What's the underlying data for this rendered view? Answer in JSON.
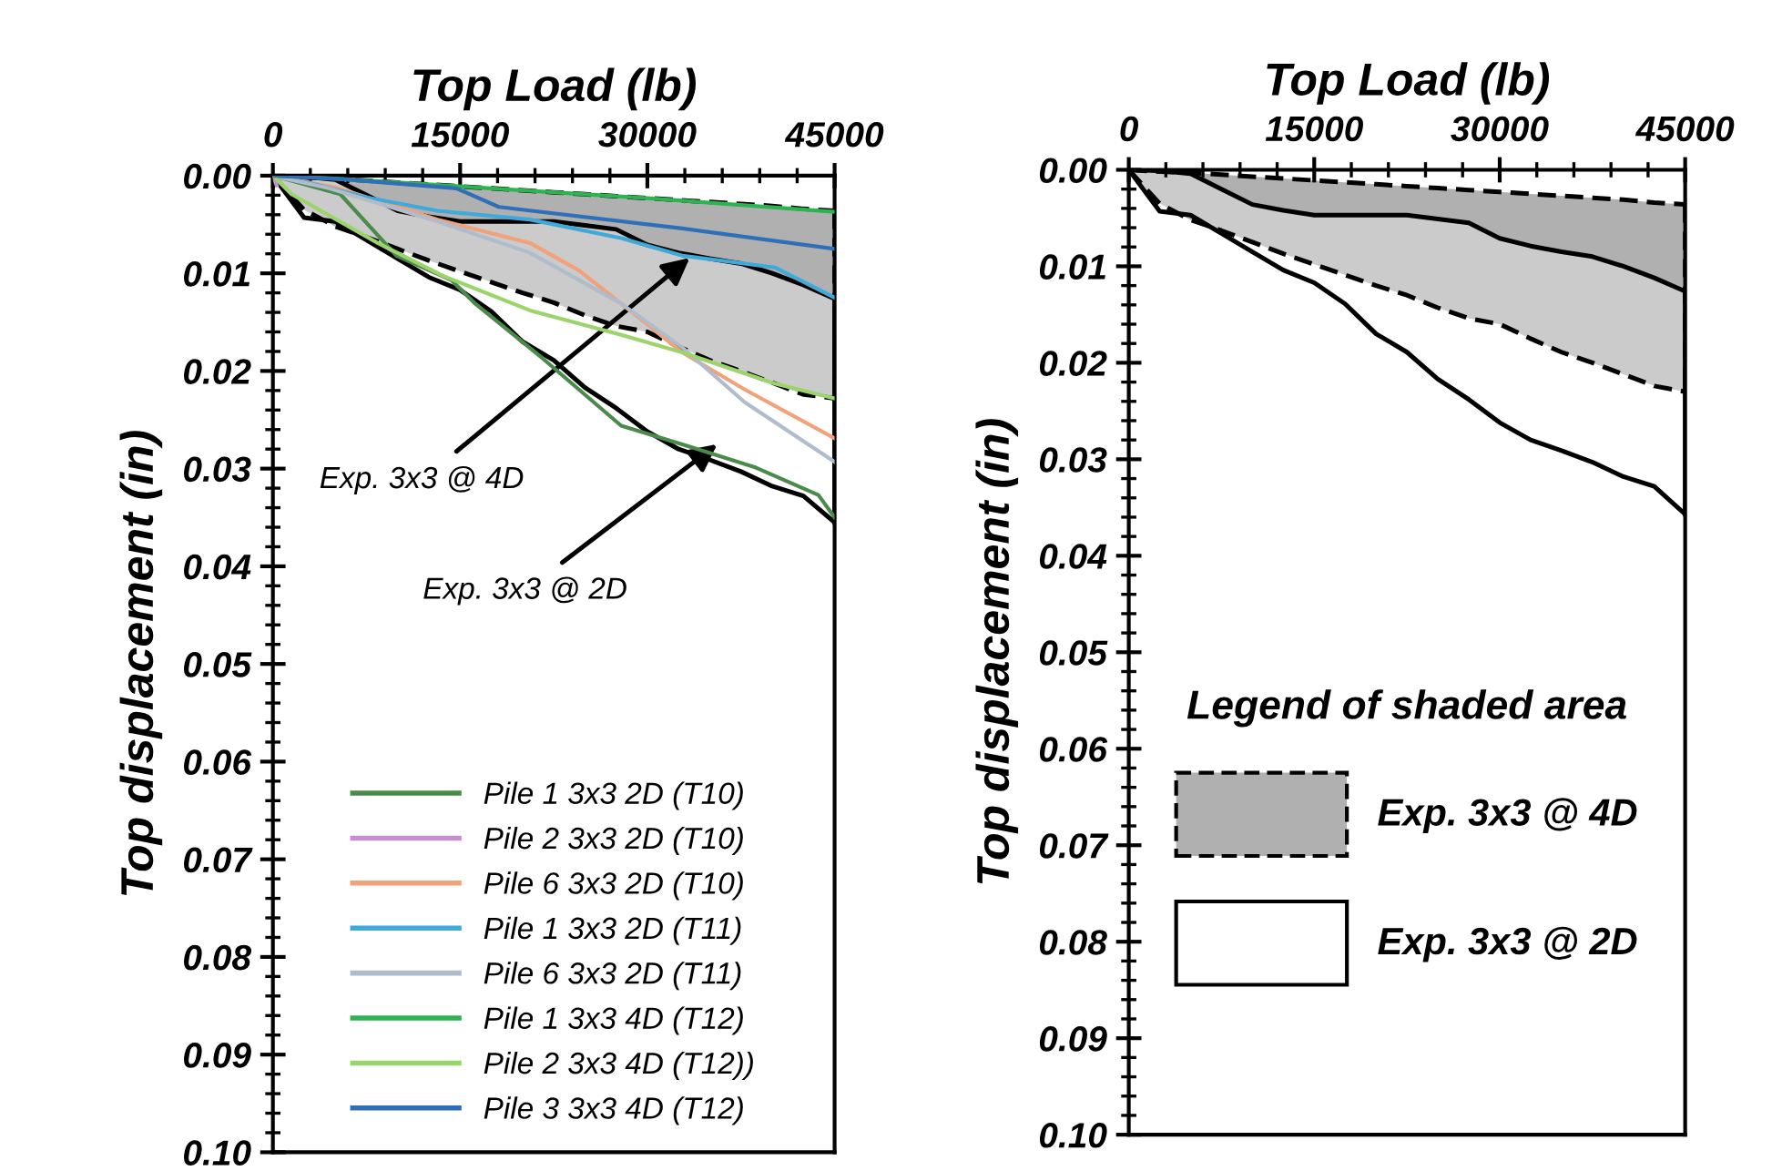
{
  "chart_data": [
    {
      "type": "line",
      "xlabel": "Top Load (lb)",
      "ylabel": "Top displacement (in)",
      "xlim": [
        0,
        45000
      ],
      "xticks": [
        0,
        15000,
        30000,
        45000
      ],
      "ylim": [
        0.1,
        0.0
      ],
      "yticks": [
        {
          "value": 0,
          "label": "0.00"
        },
        {
          "value": 0.01,
          "label": "0.01"
        },
        {
          "value": 0.02,
          "label": "0.02"
        },
        {
          "value": 0.03,
          "label": "0.03"
        },
        {
          "value": 0.04,
          "label": "0.04"
        },
        {
          "value": 0.05,
          "label": "0.05"
        },
        {
          "value": 0.06,
          "label": "0.06"
        },
        {
          "value": 0.07,
          "label": "0.07"
        },
        {
          "value": 0.08,
          "label": "0.08"
        },
        {
          "value": 0.09,
          "label": "0.09"
        },
        {
          "value": 0.1,
          "label": "0.10"
        }
      ],
      "grid": false,
      "legend": "bottom",
      "series": [
        {
          "color": "#000000",
          "line_style": "dashed",
          "x": [
            0,
            2500,
            5000,
            7500,
            10000,
            12500,
            15000,
            17500,
            20000,
            22500,
            25000,
            27500,
            30000,
            32500,
            35000,
            37500,
            40000,
            42500,
            45000
          ],
          "values": [
            0,
            0.0002,
            0.0003,
            0.0005,
            0.0007,
            0.0009,
            0.0011,
            0.0013,
            0.0015,
            0.0017,
            0.0019,
            0.0021,
            0.0023,
            0.0025,
            0.0027,
            0.0029,
            0.0031,
            0.0034,
            0.0036
          ]
        },
        {
          "color": "#000000",
          "line_style": "solid",
          "x": [
            0,
            2500,
            5000,
            7500,
            10000,
            12500,
            15000,
            17500,
            20000,
            22500,
            25000,
            27500,
            30000,
            32500,
            35000,
            37500,
            40000,
            42500,
            45000
          ],
          "values": [
            0,
            0.0001,
            0.0004,
            0.002,
            0.0036,
            0.0042,
            0.0047,
            0.0047,
            0.0047,
            0.0047,
            0.0051,
            0.0055,
            0.0071,
            0.0079,
            0.0085,
            0.009,
            0.01,
            0.0112,
            0.0126
          ]
        },
        {
          "color": "#000000",
          "line_style": "dashed",
          "x": [
            0,
            2500,
            5000,
            7500,
            10000,
            12500,
            15000,
            17500,
            20000,
            22500,
            25000,
            27500,
            30000,
            32500,
            35000,
            37500,
            40000,
            42500,
            45000
          ],
          "values": [
            0,
            0.0035,
            0.0052,
            0.0063,
            0.0075,
            0.0087,
            0.0098,
            0.0109,
            0.012,
            0.013,
            0.0143,
            0.0154,
            0.016,
            0.0175,
            0.0189,
            0.02,
            0.0212,
            0.0224,
            0.0228
          ],
          "lower": [
            0,
            0.0002,
            0.0003,
            0.0005,
            0.0007,
            0.0009,
            0.0011,
            0.0013,
            0.0015,
            0.0017,
            0.0019,
            0.0021,
            0.0023,
            0.0025,
            0.0027,
            0.0029,
            0.0031,
            0.0034,
            0.0036
          ],
          "upper": [
            0,
            0.0035,
            0.0052,
            0.0063,
            0.0075,
            0.0087,
            0.0098,
            0.0109,
            0.012,
            0.013,
            0.0143,
            0.0154,
            0.016,
            0.0175,
            0.0189,
            0.02,
            0.0212,
            0.0224,
            0.0228
          ]
        },
        {
          "color": "#000000",
          "line_style": "solid",
          "x": [
            0,
            2500,
            5000,
            7500,
            10000,
            12500,
            15000,
            17500,
            20000,
            22500,
            25000,
            27500,
            30000,
            32500,
            35000,
            37500,
            40000,
            42500,
            45000
          ],
          "values": [
            0,
            0.0043,
            0.0047,
            0.0066,
            0.0085,
            0.0104,
            0.0117,
            0.0139,
            0.017,
            0.0189,
            0.0217,
            0.0238,
            0.0262,
            0.028,
            0.0291,
            0.0303,
            0.0318,
            0.0328,
            0.0355
          ],
          "lower": [
            0,
            0.0001,
            0.0004,
            0.002,
            0.0036,
            0.0042,
            0.0047,
            0.0047,
            0.0047,
            0.0047,
            0.0051,
            0.0055,
            0.0071,
            0.0079,
            0.0085,
            0.009,
            0.01,
            0.0112,
            0.0126
          ],
          "upper": [
            0,
            0.0043,
            0.0047,
            0.0066,
            0.0085,
            0.0104,
            0.0117,
            0.0139,
            0.017,
            0.0189,
            0.0217,
            0.0238,
            0.0262,
            0.028,
            0.0291,
            0.0303,
            0.0318,
            0.0328,
            0.0355
          ]
        },
        {
          "name": "Pile 1 3x3 2D (T10)",
          "color": "#4a8a4a",
          "x": [
            0,
            5400,
            9900,
            14300,
            16200,
            21600,
            27900,
            33800,
            38700,
            43700,
            45000
          ],
          "values": [
            0,
            0.0019,
            0.0082,
            0.0107,
            0.0131,
            0.0187,
            0.0256,
            0.0279,
            0.0299,
            0.0327,
            0.035
          ]
        },
        {
          "name": "Pile 2 3x3 2D (T10)",
          "color": "#c78fd0",
          "x": [
            0,
            300
          ],
          "values": [
            0,
            0.001
          ]
        },
        {
          "name": "Pile 6 3x3 2D (T10)",
          "color": "#f0a27a",
          "x": [
            0,
            5000,
            13200,
            20600,
            24500,
            27900,
            32800,
            37800,
            45000
          ],
          "values": [
            0,
            0.0012,
            0.0045,
            0.0069,
            0.0097,
            0.0131,
            0.0181,
            0.0219,
            0.0269
          ]
        },
        {
          "name": "Pile 1 3x3 2D (T11)",
          "color": "#3fa9d9",
          "x": [
            0,
            3400,
            7400,
            13200,
            20600,
            27900,
            32800,
            40200,
            45000
          ],
          "values": [
            0,
            0.0009,
            0.0022,
            0.0036,
            0.0045,
            0.0064,
            0.0082,
            0.0094,
            0.0125
          ]
        },
        {
          "name": "Pile 6 3x3 2D (T11)",
          "color": "#b0bccc",
          "x": [
            0,
            4500,
            13200,
            20600,
            27900,
            32800,
            37800,
            45000
          ],
          "values": [
            0,
            0.0013,
            0.0047,
            0.0079,
            0.0131,
            0.0176,
            0.0232,
            0.0293
          ]
        },
        {
          "name": "Pile 1 3x3 4D (T12)",
          "color": "#2db350",
          "x": [
            0,
            5000,
            15000,
            30000,
            45000
          ],
          "values": [
            0,
            0.0003,
            0.0011,
            0.0023,
            0.0037
          ]
        },
        {
          "name": "Pile 2 3x3 4D (T12))",
          "color": "#9ad46a",
          "x": [
            0,
            1500,
            8400,
            13700,
            20600,
            27900,
            32800,
            40200,
            45000
          ],
          "values": [
            0,
            0.0019,
            0.0069,
            0.0103,
            0.0138,
            0.0163,
            0.0181,
            0.0213,
            0.0228
          ]
        },
        {
          "name": "Pile 3 3x3 4D (T12)",
          "color": "#2f6fb8",
          "x": [
            0,
            5900,
            14700,
            18100,
            32800,
            45000
          ],
          "values": [
            0,
            0.0004,
            0.0013,
            0.0032,
            0.0054,
            0.0075
          ]
        }
      ],
      "annotations": [
        {
          "text": "Exp. 3x3 @ 4D",
          "x": 33400,
          "y": 0.0084
        },
        {
          "text": "Exp. 3x3 @ 2D",
          "x": 35600,
          "y": 0.0275
        }
      ]
    },
    {
      "type": "line",
      "xlabel": "Top Load (lb)",
      "ylabel": "Top displacement (in)",
      "xlim": [
        0,
        45000
      ],
      "xticks": [
        0,
        15000,
        30000,
        45000
      ],
      "ylim": [
        0.1,
        0.0
      ],
      "yticks": [
        {
          "value": 0,
          "label": "0.00"
        },
        {
          "value": 0.01,
          "label": "0.01"
        },
        {
          "value": 0.02,
          "label": "0.02"
        },
        {
          "value": 0.03,
          "label": "0.03"
        },
        {
          "value": 0.04,
          "label": "0.04"
        },
        {
          "value": 0.05,
          "label": "0.05"
        },
        {
          "value": 0.06,
          "label": "0.06"
        },
        {
          "value": 0.07,
          "label": "0.07"
        },
        {
          "value": 0.08,
          "label": "0.08"
        },
        {
          "value": 0.09,
          "label": "0.09"
        },
        {
          "value": 0.1,
          "label": "0.10"
        }
      ],
      "grid": false,
      "legend": "bottom",
      "legend_title": "Legend of shaded area",
      "series": [
        {
          "color": "#000000",
          "line_style": "dashed",
          "x": [
            0,
            2500,
            5000,
            7500,
            10000,
            12500,
            15000,
            17500,
            20000,
            22500,
            25000,
            27500,
            30000,
            32500,
            35000,
            37500,
            40000,
            42500,
            45000
          ],
          "values": [
            0,
            0.0002,
            0.0003,
            0.0005,
            0.0007,
            0.0009,
            0.0011,
            0.0013,
            0.0015,
            0.0017,
            0.0019,
            0.0021,
            0.0023,
            0.0025,
            0.0027,
            0.0029,
            0.0031,
            0.0034,
            0.0036
          ]
        },
        {
          "color": "#000000",
          "line_style": "solid",
          "x": [
            0,
            2500,
            5000,
            7500,
            10000,
            12500,
            15000,
            17500,
            20000,
            22500,
            25000,
            27500,
            30000,
            32500,
            35000,
            37500,
            40000,
            42500,
            45000
          ],
          "values": [
            0,
            0.0001,
            0.0004,
            0.002,
            0.0036,
            0.0042,
            0.0047,
            0.0047,
            0.0047,
            0.0047,
            0.0051,
            0.0055,
            0.0071,
            0.0079,
            0.0085,
            0.009,
            0.01,
            0.0112,
            0.0126
          ]
        },
        {
          "name": "Exp. 3x3 @ 4D",
          "color": "#000000",
          "line_style": "dashed",
          "x": [
            0,
            2500,
            5000,
            7500,
            10000,
            12500,
            15000,
            17500,
            20000,
            22500,
            25000,
            27500,
            30000,
            32500,
            35000,
            37500,
            40000,
            42500,
            45000
          ],
          "values": [
            0,
            0.0035,
            0.0052,
            0.0063,
            0.0075,
            0.0087,
            0.0098,
            0.0109,
            0.012,
            0.013,
            0.0143,
            0.0154,
            0.016,
            0.0175,
            0.0189,
            0.02,
            0.0212,
            0.0224,
            0.023
          ],
          "lower": [
            0,
            0.0002,
            0.0003,
            0.0005,
            0.0007,
            0.0009,
            0.0011,
            0.0013,
            0.0015,
            0.0017,
            0.0019,
            0.0021,
            0.0023,
            0.0025,
            0.0027,
            0.0029,
            0.0031,
            0.0034,
            0.0036
          ],
          "upper": [
            0,
            0.0035,
            0.0052,
            0.0063,
            0.0075,
            0.0087,
            0.0098,
            0.0109,
            0.012,
            0.013,
            0.0143,
            0.0154,
            0.016,
            0.0175,
            0.0189,
            0.02,
            0.0212,
            0.0224,
            0.023
          ]
        },
        {
          "name": "Exp. 3x3 @ 2D",
          "color": "#000000",
          "line_style": "solid",
          "x": [
            0,
            2500,
            5000,
            7500,
            10000,
            12500,
            15000,
            17500,
            20000,
            22500,
            25000,
            27500,
            30000,
            32500,
            35000,
            37500,
            40000,
            42500,
            45000
          ],
          "values": [
            0,
            0.0043,
            0.0047,
            0.0066,
            0.0085,
            0.0104,
            0.0117,
            0.0139,
            0.017,
            0.0189,
            0.0217,
            0.0238,
            0.0262,
            0.028,
            0.0291,
            0.0303,
            0.0318,
            0.0328,
            0.0357
          ],
          "lower": [
            0,
            0.0001,
            0.0004,
            0.002,
            0.0036,
            0.0042,
            0.0047,
            0.0047,
            0.0047,
            0.0047,
            0.0051,
            0.0055,
            0.0071,
            0.0079,
            0.0085,
            0.009,
            0.01,
            0.0112,
            0.0126
          ],
          "upper": [
            0,
            0.0043,
            0.0047,
            0.0066,
            0.0085,
            0.0104,
            0.0117,
            0.0139,
            0.017,
            0.0189,
            0.0217,
            0.0238,
            0.0262,
            0.028,
            0.0291,
            0.0303,
            0.0318,
            0.0328,
            0.0357
          ]
        }
      ]
    }
  ]
}
